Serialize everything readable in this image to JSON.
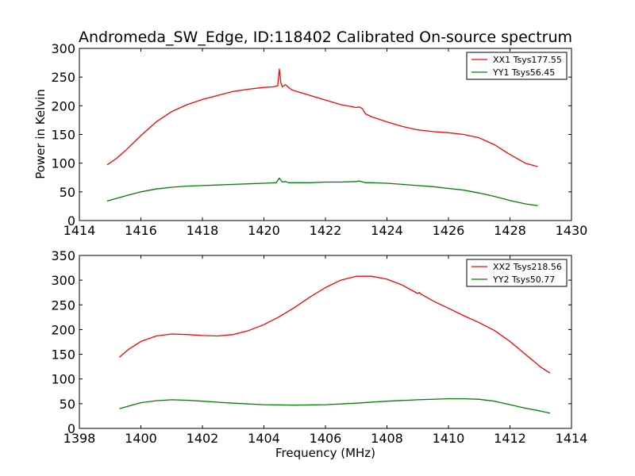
{
  "figure": {
    "title": "Andromeda_SW_Edge, ID:118402 Calibrated On-source spectrum",
    "ylabel": "Power in Kelvin",
    "xlabel": "Frequency (MHz)"
  },
  "chart_data": [
    {
      "type": "line",
      "xlim": [
        1414,
        1430
      ],
      "ylim": [
        0,
        300
      ],
      "xticks": [
        1414,
        1416,
        1418,
        1420,
        1422,
        1424,
        1426,
        1428,
        1430
      ],
      "yticks": [
        0,
        50,
        100,
        150,
        200,
        250,
        300
      ],
      "legend": "top-right",
      "series": [
        {
          "name": "XX1 Tsys177.55",
          "color": "#ff0000",
          "x": [
            1414.9,
            1415.2,
            1415.5,
            1416.0,
            1416.5,
            1417.0,
            1417.5,
            1418.0,
            1418.5,
            1419.0,
            1419.5,
            1420.0,
            1420.3,
            1420.45,
            1420.5,
            1420.55,
            1420.6,
            1420.7,
            1420.8,
            1420.9,
            1421.0,
            1421.5,
            1422.0,
            1422.5,
            1423.0,
            1423.1,
            1423.2,
            1423.3,
            1423.5,
            1424.0,
            1424.5,
            1425.0,
            1425.5,
            1426.0,
            1426.5,
            1427.0,
            1427.5,
            1428.0,
            1428.5,
            1428.9
          ],
          "y": [
            97,
            108,
            122,
            148,
            172,
            190,
            202,
            211,
            218,
            225,
            229,
            232,
            233,
            235,
            264,
            240,
            233,
            237,
            232,
            228,
            226,
            218,
            210,
            202,
            197,
            198,
            195,
            186,
            181,
            172,
            164,
            158,
            155,
            153,
            150,
            144,
            132,
            115,
            100,
            94
          ]
        },
        {
          "name": "YY1 Tsys56.45",
          "color": "#007f00",
          "x": [
            1414.9,
            1415.5,
            1416.0,
            1416.5,
            1417.0,
            1417.5,
            1418.0,
            1418.5,
            1419.0,
            1419.5,
            1420.0,
            1420.4,
            1420.5,
            1420.6,
            1420.7,
            1420.8,
            1421.0,
            1421.5,
            1422.0,
            1422.5,
            1423.0,
            1423.1,
            1423.3,
            1423.5,
            1424.0,
            1424.5,
            1425.0,
            1425.5,
            1426.0,
            1426.5,
            1427.0,
            1427.5,
            1428.0,
            1428.5,
            1428.9
          ],
          "y": [
            34,
            43,
            50,
            55,
            58,
            60,
            61,
            62,
            63,
            64,
            65,
            66,
            74,
            67,
            68,
            66,
            66,
            66,
            67,
            67,
            68,
            69,
            66,
            66,
            65,
            63,
            61,
            59,
            56,
            53,
            48,
            42,
            35,
            29,
            26
          ]
        }
      ]
    },
    {
      "type": "line",
      "xlim": [
        1398,
        1414
      ],
      "ylim": [
        0,
        350
      ],
      "xticks": [
        1398,
        1400,
        1402,
        1404,
        1406,
        1408,
        1410,
        1412,
        1414
      ],
      "yticks": [
        0,
        50,
        100,
        150,
        200,
        250,
        300,
        350
      ],
      "legend": "top-right",
      "series": [
        {
          "name": "XX2 Tsys218.56",
          "color": "#ff0000",
          "x": [
            1399.3,
            1399.6,
            1400.0,
            1400.5,
            1401.0,
            1401.5,
            1402.0,
            1402.5,
            1403.0,
            1403.5,
            1404.0,
            1404.5,
            1405.0,
            1405.5,
            1406.0,
            1406.5,
            1407.0,
            1407.5,
            1408.0,
            1408.5,
            1409.0,
            1409.05,
            1409.1,
            1409.5,
            1410.0,
            1410.5,
            1411.0,
            1411.5,
            1412.0,
            1412.5,
            1413.0,
            1413.3
          ],
          "y": [
            144,
            160,
            176,
            187,
            191,
            190,
            188,
            187,
            190,
            198,
            210,
            226,
            245,
            266,
            285,
            300,
            308,
            308,
            302,
            290,
            273,
            275,
            272,
            258,
            243,
            228,
            214,
            198,
            176,
            150,
            124,
            112
          ]
        },
        {
          "name": "YY2 Tsys50.77",
          "color": "#007f00",
          "x": [
            1399.3,
            1400.0,
            1400.5,
            1401.0,
            1401.5,
            1402.0,
            1402.5,
            1403.0,
            1404.0,
            1405.0,
            1406.0,
            1407.0,
            1408.0,
            1409.0,
            1410.0,
            1410.5,
            1411.0,
            1411.5,
            1412.0,
            1412.5,
            1413.0,
            1413.3
          ],
          "y": [
            40,
            52,
            56,
            58,
            57,
            55,
            53,
            51,
            48,
            47,
            48,
            51,
            55,
            58,
            60,
            60,
            59,
            55,
            48,
            41,
            35,
            31
          ]
        }
      ]
    }
  ]
}
